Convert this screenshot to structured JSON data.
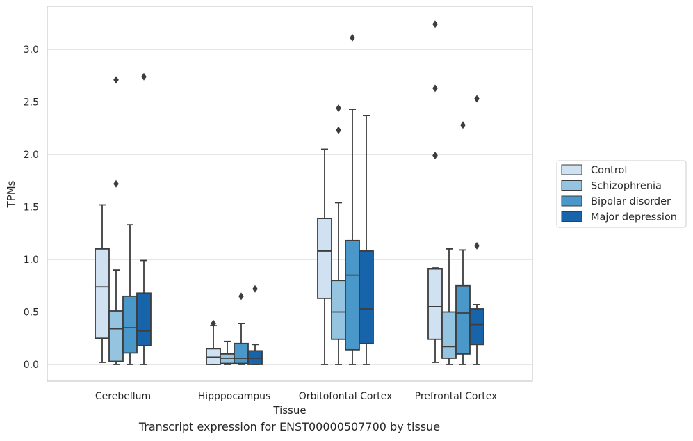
{
  "caption": "Transcript expression for ENST00000507700 by tissue",
  "chart_data": {
    "type": "box",
    "xlabel": "Tissue",
    "ylabel": "TPMs",
    "ylim": [
      -0.16,
      3.41
    ],
    "yticks": [
      0.0,
      0.5,
      1.0,
      1.5,
      2.0,
      2.5,
      3.0
    ],
    "ytick_labels": [
      "0.0",
      "0.5",
      "1.0",
      "1.5",
      "2.0",
      "2.5",
      "3.0"
    ],
    "grid": "horizontal",
    "legend_position": "right",
    "categories": [
      "Cerebellum",
      "Hipppocampus",
      "Orbitofontal Cortex",
      "Prefrontal Cortex"
    ],
    "series": [
      {
        "name": "Control",
        "color": "#d0e1f2",
        "boxes": [
          {
            "low": 0.02,
            "q1": 0.25,
            "median": 0.74,
            "q3": 1.1,
            "high": 1.52,
            "outliers": []
          },
          {
            "low": 0.0,
            "q1": 0.0,
            "median": 0.07,
            "q3": 0.15,
            "high": 0.37,
            "outliers": [
              0.39
            ]
          },
          {
            "low": 0.0,
            "q1": 0.63,
            "median": 1.08,
            "q3": 1.39,
            "high": 2.05,
            "outliers": []
          },
          {
            "low": 0.02,
            "q1": 0.24,
            "median": 0.55,
            "q3": 0.91,
            "high": 0.92,
            "outliers": [
              1.99,
              2.63,
              3.24
            ]
          }
        ]
      },
      {
        "name": "Schizophrenia",
        "color": "#94c4df",
        "boxes": [
          {
            "low": 0.0,
            "q1": 0.03,
            "median": 0.34,
            "q3": 0.51,
            "high": 0.9,
            "outliers": [
              1.72,
              2.71
            ]
          },
          {
            "low": 0.0,
            "q1": 0.01,
            "median": 0.06,
            "q3": 0.1,
            "high": 0.22,
            "outliers": []
          },
          {
            "low": 0.0,
            "q1": 0.24,
            "median": 0.5,
            "q3": 0.8,
            "high": 1.54,
            "outliers": [
              2.23,
              2.44
            ]
          },
          {
            "low": 0.0,
            "q1": 0.06,
            "median": 0.17,
            "q3": 0.5,
            "high": 1.1,
            "outliers": []
          }
        ]
      },
      {
        "name": "Bipolar disorder",
        "color": "#4a98c9",
        "boxes": [
          {
            "low": 0.0,
            "q1": 0.11,
            "median": 0.35,
            "q3": 0.65,
            "high": 1.33,
            "outliers": []
          },
          {
            "low": 0.0,
            "q1": 0.01,
            "median": 0.06,
            "q3": 0.2,
            "high": 0.39,
            "outliers": [
              0.65
            ]
          },
          {
            "low": 0.0,
            "q1": 0.14,
            "median": 0.85,
            "q3": 1.18,
            "high": 2.43,
            "outliers": [
              3.11
            ]
          },
          {
            "low": 0.0,
            "q1": 0.1,
            "median": 0.49,
            "q3": 0.75,
            "high": 1.09,
            "outliers": [
              2.28
            ]
          }
        ]
      },
      {
        "name": "Major depression",
        "color": "#1764ab",
        "boxes": [
          {
            "low": 0.0,
            "q1": 0.18,
            "median": 0.32,
            "q3": 0.68,
            "high": 0.99,
            "outliers": [
              2.74
            ]
          },
          {
            "low": 0.0,
            "q1": 0.0,
            "median": 0.06,
            "q3": 0.13,
            "high": 0.19,
            "outliers": [
              0.72
            ]
          },
          {
            "low": 0.0,
            "q1": 0.2,
            "median": 0.53,
            "q3": 1.08,
            "high": 2.37,
            "outliers": []
          },
          {
            "low": 0.0,
            "q1": 0.19,
            "median": 0.38,
            "q3": 0.53,
            "high": 0.57,
            "outliers": [
              1.13,
              2.53
            ]
          }
        ]
      }
    ]
  }
}
